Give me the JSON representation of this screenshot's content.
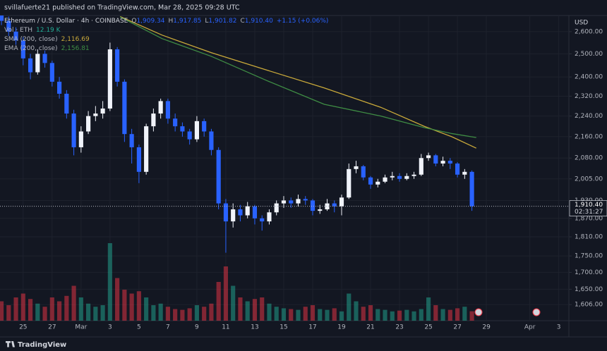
{
  "header": "svillafuerte21 published on TradingView.com, Mar 28, 2025 09:28 UTC",
  "brand": "TradingView",
  "chart_data": {
    "type": "candlestick",
    "symbol": "Ethereum / U.S. Dollar · 4h · COINBASE",
    "ohlc_legend": [
      {
        "label": "O",
        "value": "1,909.34"
      },
      {
        "label": "H",
        "value": "1,917.85"
      },
      {
        "label": "L",
        "value": "1,901.82"
      },
      {
        "label": "C",
        "value": "1,910.40"
      },
      {
        "label": "",
        "value": "+1.15 (+0.06%)"
      }
    ],
    "currency": "USD",
    "log_scale": true,
    "grid": true,
    "up_color": "#f0f3fa",
    "down_color": "#2962ff",
    "volume_up_color": "#22ab94",
    "volume_down_color": "#f23645",
    "volume_name": "Vol · ETH",
    "volume_value_label": "12.19 K",
    "xlim": [
      -1.6,
      37.7
    ],
    "xticks": [
      {
        "value": 0,
        "label": "25"
      },
      {
        "value": 2,
        "label": "27"
      },
      {
        "value": 4,
        "label": "Mar"
      },
      {
        "value": 6,
        "label": "3"
      },
      {
        "value": 8,
        "label": "5"
      },
      {
        "value": 10,
        "label": "7"
      },
      {
        "value": 12,
        "label": "9"
      },
      {
        "value": 14,
        "label": "11"
      },
      {
        "value": 16,
        "label": "13"
      },
      {
        "value": 18,
        "label": "15"
      },
      {
        "value": 20,
        "label": "17"
      },
      {
        "value": 22,
        "label": "19"
      },
      {
        "value": 24,
        "label": "21"
      },
      {
        "value": 26,
        "label": "23"
      },
      {
        "value": 28,
        "label": "25"
      },
      {
        "value": 30,
        "label": "27"
      },
      {
        "value": 32,
        "label": "29"
      },
      {
        "value": 35,
        "label": "Apr"
      },
      {
        "value": 37,
        "label": "3"
      }
    ],
    "ylim": [
      1561,
      2675
    ],
    "yticks": [
      {
        "value": 2600,
        "label": "2,600.00"
      },
      {
        "value": 2500,
        "label": "2,500.00"
      },
      {
        "value": 2400,
        "label": "2,400.00"
      },
      {
        "value": 2320,
        "label": "2,320.00"
      },
      {
        "value": 2240,
        "label": "2,240.00"
      },
      {
        "value": 2160,
        "label": "2,160.00"
      },
      {
        "value": 2080,
        "label": "2,080.00"
      },
      {
        "value": 2005,
        "label": "2,005.00"
      },
      {
        "value": 1930,
        "label": "1,930.00"
      },
      {
        "value": 1870,
        "label": "1,870.00"
      },
      {
        "value": 1810,
        "label": "1,810.00"
      },
      {
        "value": 1750,
        "label": "1,750.00"
      },
      {
        "value": 1700,
        "label": "1,700.00"
      },
      {
        "value": 1650,
        "label": "1,650.00"
      },
      {
        "value": 1606,
        "label": "1,606.00"
      }
    ],
    "last_price": {
      "value": 1910.4,
      "label": "1,910.40"
    },
    "countdown": "02:31:27",
    "x": [
      -1.5,
      -1,
      -0.5,
      0,
      0.5,
      1,
      1.5,
      2,
      2.5,
      3,
      3.5,
      4,
      4.5,
      5,
      5.5,
      6,
      6.5,
      7,
      7.5,
      8,
      8.5,
      9,
      9.5,
      10,
      10.5,
      11,
      11.5,
      12,
      12.5,
      13,
      13.5,
      14,
      14.5,
      15,
      15.5,
      16,
      16.5,
      17,
      17.5,
      18,
      18.5,
      19,
      19.5,
      20,
      20.5,
      21,
      21.5,
      22,
      22.5,
      23,
      23.5,
      24,
      24.5,
      25,
      25.5,
      26,
      26.5,
      27,
      27.5,
      28,
      28.5,
      29,
      29.5,
      30,
      30.5,
      31
    ],
    "open": [
      2680,
      2650,
      2600,
      2560,
      2480,
      2420,
      2500,
      2460,
      2380,
      2330,
      2250,
      2120,
      2180,
      2240,
      2250,
      2270,
      2520,
      2380,
      2170,
      2120,
      2030,
      2200,
      2250,
      2300,
      2230,
      2200,
      2180,
      2150,
      2220,
      2180,
      2110,
      1920,
      1860,
      1900,
      1880,
      1910,
      1870,
      1860,
      1890,
      1920,
      1930,
      1920,
      1935,
      1930,
      1895,
      1900,
      1920,
      1910,
      1940,
      2040,
      2050,
      2010,
      1985,
      1995,
      2010,
      2015,
      2005,
      2015,
      2020,
      2080,
      2090,
      2060,
      2070,
      2060,
      2020,
      2030
    ],
    "high": [
      2700,
      2670,
      2620,
      2575,
      2500,
      2520,
      2515,
      2470,
      2400,
      2345,
      2265,
      2200,
      2260,
      2280,
      2300,
      2550,
      2530,
      2390,
      2190,
      2130,
      2210,
      2270,
      2310,
      2310,
      2250,
      2215,
      2190,
      2240,
      2230,
      2190,
      2120,
      1935,
      1920,
      1915,
      1925,
      1915,
      1880,
      1900,
      1930,
      1945,
      1940,
      1950,
      1945,
      1935,
      1915,
      1935,
      1930,
      1950,
      2060,
      2070,
      2055,
      2015,
      2005,
      2020,
      2030,
      2025,
      2025,
      2030,
      2095,
      2100,
      2095,
      2085,
      2080,
      2065,
      2040,
      2035
    ],
    "low": [
      2630,
      2580,
      2540,
      2450,
      2390,
      2410,
      2440,
      2360,
      2310,
      2230,
      2090,
      2100,
      2170,
      2220,
      2230,
      2260,
      2360,
      2140,
      2060,
      1990,
      2020,
      2180,
      2230,
      2210,
      2180,
      2160,
      2130,
      2140,
      2160,
      2090,
      1900,
      1760,
      1840,
      1860,
      1870,
      1850,
      1830,
      1850,
      1880,
      1905,
      1905,
      1910,
      1915,
      1880,
      1885,
      1895,
      1890,
      1880,
      1935,
      2025,
      2000,
      1970,
      1975,
      1990,
      2000,
      1995,
      2000,
      2005,
      2015,
      2070,
      2050,
      2050,
      2040,
      2010,
      2005,
      1895
    ],
    "close": [
      2650,
      2600,
      2560,
      2480,
      2420,
      2500,
      2460,
      2380,
      2330,
      2250,
      2120,
      2180,
      2240,
      2250,
      2270,
      2520,
      2380,
      2170,
      2120,
      2030,
      2200,
      2250,
      2300,
      2230,
      2200,
      2180,
      2150,
      2220,
      2180,
      2110,
      1920,
      1860,
      1900,
      1880,
      1910,
      1870,
      1860,
      1890,
      1920,
      1930,
      1920,
      1935,
      1930,
      1895,
      1900,
      1920,
      1910,
      1940,
      2040,
      2050,
      2010,
      1985,
      1995,
      2010,
      2015,
      2005,
      2015,
      2020,
      2080,
      2090,
      2060,
      2070,
      2060,
      2020,
      2030,
      1910.4
    ],
    "volume": [
      25,
      20,
      30,
      35,
      28,
      22,
      18,
      30,
      25,
      32,
      45,
      30,
      22,
      18,
      20,
      100,
      55,
      40,
      35,
      38,
      30,
      20,
      22,
      18,
      15,
      14,
      16,
      20,
      18,
      22,
      50,
      70,
      45,
      30,
      25,
      28,
      30,
      22,
      18,
      16,
      15,
      14,
      18,
      20,
      15,
      14,
      16,
      12,
      35,
      25,
      18,
      20,
      15,
      14,
      12,
      13,
      14,
      12,
      15,
      30,
      20,
      15,
      14,
      16,
      18,
      12.19
    ],
    "indicators": [
      {
        "name": "SMA (200, close)",
        "color": "#c9a93a",
        "value_label": "2,116.69",
        "x": [
          6.7,
          9.6,
          13,
          16.9,
          20.8,
          24.7,
          27.7,
          29.6,
          31.3
        ],
        "values": [
          2670,
          2584,
          2505,
          2428,
          2354,
          2275,
          2200,
          2160,
          2116.69
        ]
      },
      {
        "name": "EMA (200, close)",
        "color": "#3f8d44",
        "value_label": "2,156.81",
        "x": [
          6.7,
          9.6,
          13,
          16.9,
          20.8,
          24.7,
          27.7,
          29.6,
          31.3
        ],
        "values": [
          2668,
          2568,
          2489,
          2383,
          2287,
          2240,
          2195,
          2172,
          2156.81
        ]
      }
    ]
  }
}
